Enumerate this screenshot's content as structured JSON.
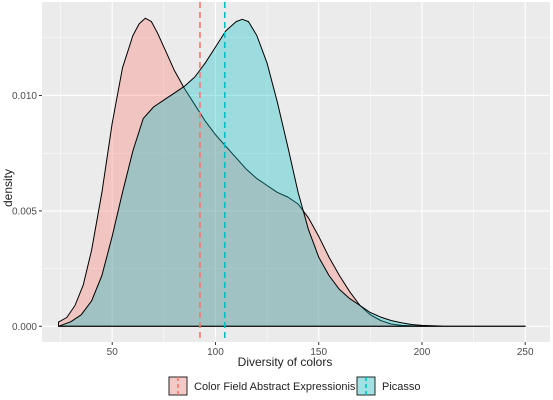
{
  "chart_data": {
    "type": "area",
    "title": "",
    "xlabel": "Diversity of colors",
    "ylabel": "density",
    "xlim": [
      16,
      262
    ],
    "ylim": [
      -0.00068,
      0.01405
    ],
    "x_ticks": [
      50,
      100,
      150,
      200,
      250
    ],
    "x_tick_labels": [
      "50",
      "100",
      "150",
      "200",
      "250"
    ],
    "y_ticks": [
      0.0,
      0.005,
      0.01
    ],
    "y_tick_labels": [
      "0.000",
      "0.005",
      "0.010"
    ],
    "grid": true,
    "legend_position": "bottom",
    "background": "#ebebeb",
    "series": [
      {
        "name": "Color Field Abstract Expressionism",
        "fill": "#f8766d",
        "mean": 92.5,
        "points": [
          [
            24,
            0.00018
          ],
          [
            28,
            0.00038
          ],
          [
            32,
            0.0009
          ],
          [
            36,
            0.0018
          ],
          [
            40,
            0.0033
          ],
          [
            45,
            0.0058
          ],
          [
            50,
            0.0088
          ],
          [
            55,
            0.0112
          ],
          [
            60,
            0.0126
          ],
          [
            63,
            0.0131
          ],
          [
            66,
            0.01335
          ],
          [
            69,
            0.0132
          ],
          [
            72,
            0.0127
          ],
          [
            76,
            0.0119
          ],
          [
            80,
            0.0111
          ],
          [
            85,
            0.0103
          ],
          [
            90,
            0.0096
          ],
          [
            95,
            0.0089
          ],
          [
            100,
            0.0083
          ],
          [
            105,
            0.0078
          ],
          [
            110,
            0.0073
          ],
          [
            115,
            0.0068
          ],
          [
            120,
            0.0064
          ],
          [
            125,
            0.0061
          ],
          [
            130,
            0.0058
          ],
          [
            135,
            0.0056
          ],
          [
            140,
            0.0053
          ],
          [
            145,
            0.0047
          ],
          [
            150,
            0.0039
          ],
          [
            155,
            0.003
          ],
          [
            160,
            0.0022
          ],
          [
            165,
            0.0015
          ],
          [
            170,
            0.0009
          ],
          [
            175,
            0.0005
          ],
          [
            180,
            0.00025
          ],
          [
            185,
            0.0001
          ],
          [
            190,
            4e-05
          ],
          [
            200,
            0.0
          ],
          [
            250,
            0.0
          ]
        ]
      },
      {
        "name": "Picasso",
        "fill": "#00bfc4",
        "mean": 104.5,
        "points": [
          [
            24,
            0.0
          ],
          [
            30,
            0.0002
          ],
          [
            35,
            0.0005
          ],
          [
            40,
            0.0011
          ],
          [
            45,
            0.0022
          ],
          [
            50,
            0.0039
          ],
          [
            55,
            0.0058
          ],
          [
            60,
            0.0076
          ],
          [
            65,
            0.009
          ],
          [
            70,
            0.0095
          ],
          [
            75,
            0.0098
          ],
          [
            80,
            0.0101
          ],
          [
            85,
            0.0104
          ],
          [
            90,
            0.0108
          ],
          [
            95,
            0.0114
          ],
          [
            100,
            0.0121
          ],
          [
            105,
            0.0128
          ],
          [
            110,
            0.0132
          ],
          [
            113,
            0.0133
          ],
          [
            116,
            0.0132
          ],
          [
            120,
            0.0126
          ],
          [
            125,
            0.0114
          ],
          [
            130,
            0.0097
          ],
          [
            135,
            0.0078
          ],
          [
            140,
            0.0058
          ],
          [
            145,
            0.0042
          ],
          [
            150,
            0.003
          ],
          [
            155,
            0.0022
          ],
          [
            160,
            0.0016
          ],
          [
            165,
            0.0012
          ],
          [
            170,
            0.0009
          ],
          [
            175,
            0.0006
          ],
          [
            180,
            0.0004
          ],
          [
            185,
            0.00025
          ],
          [
            190,
            0.00015
          ],
          [
            195,
            8e-05
          ],
          [
            200,
            4e-05
          ],
          [
            210,
            1e-05
          ],
          [
            250,
            0.0
          ]
        ]
      }
    ]
  }
}
